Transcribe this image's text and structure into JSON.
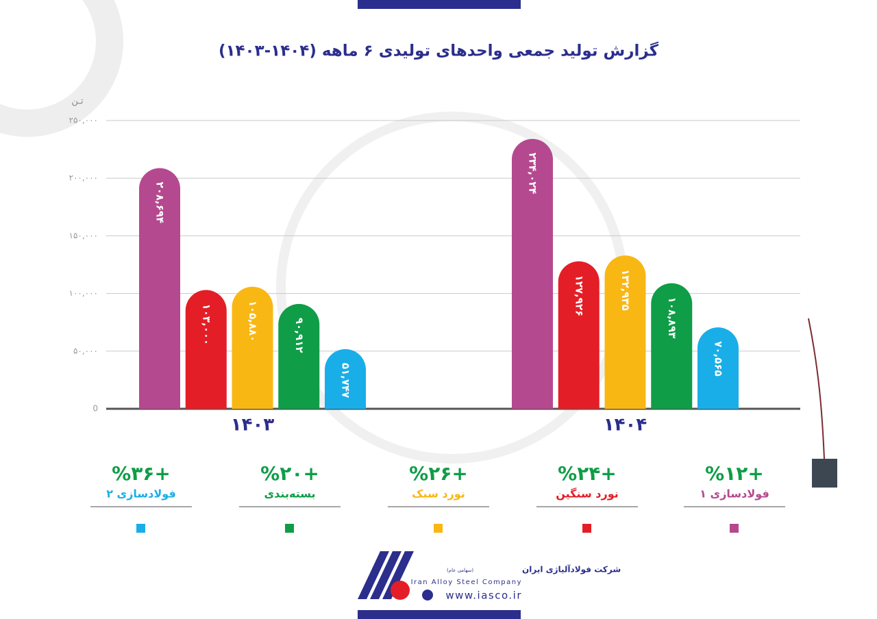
{
  "chart_data": {
    "type": "bar",
    "title": "گزارش تولید جمعی واحدهای تولیدی ۶ ماهه (۱۴۰۴-۱۴۰۳)",
    "y_label": "تـن",
    "categories": [
      "۱۴۰۳",
      "۱۴۰۴"
    ],
    "series": [
      {
        "name": "فولادسازی ۱",
        "color": "#b5498f",
        "values": [
          208694,
          234024
        ],
        "value_labels": [
          "۲۰۸,۶۹۴",
          "۲۳۴,۰۲۴"
        ],
        "growth": 12,
        "growth_label": "+%۱۲"
      },
      {
        "name": "نورد سنگین",
        "color": "#e41e26",
        "values": [
          103000,
          127926
        ],
        "value_labels": [
          "۱۰۳,۰۰۰",
          "۱۲۷,۹۲۶"
        ],
        "growth": 24,
        "growth_label": "+%۲۴"
      },
      {
        "name": "نورد سبک",
        "color": "#f9b714",
        "values": [
          105880,
          132935
        ],
        "value_labels": [
          "۱۰۵,۸۸۰",
          "۱۳۲,۹۳۵"
        ],
        "growth": 26,
        "growth_label": "+%۲۶"
      },
      {
        "name": "بسته‌بندی",
        "color": "#0f9d47",
        "values": [
          90912,
          108893
        ],
        "value_labels": [
          "۹۰,۹۱۲",
          "۱۰۸,۸۹۳"
        ],
        "growth": 20,
        "growth_label": "+%۲۰"
      },
      {
        "name": "فولادسازی ۲",
        "color": "#19aee8",
        "values": [
          51747,
          70565
        ],
        "value_labels": [
          "۵۱,۷۴۷",
          "۷۰,۵۶۵"
        ],
        "growth": 36,
        "growth_label": "+%۳۶"
      }
    ],
    "ylim": [
      0,
      250000
    ],
    "yticks": [
      0,
      {
        "value": 50000,
        "label": "۵۰,۰۰۰"
      },
      {
        "value": 100000,
        "label": "۱۰۰,۰۰۰"
      },
      {
        "value": 150000,
        "label": "۱۵۰,۰۰۰"
      },
      {
        "value": 200000,
        "label": "۲۰۰,۰۰۰"
      },
      {
        "value": 250000,
        "label": "۲۵۰,۰۰۰"
      }
    ],
    "grid": true
  },
  "footer": {
    "company": "شرکت فولادآلیاژی ایران",
    "company_type": "(سهامی عام)",
    "company_en": "Iran Alloy Steel Company",
    "website": "www.iasco.ir"
  }
}
